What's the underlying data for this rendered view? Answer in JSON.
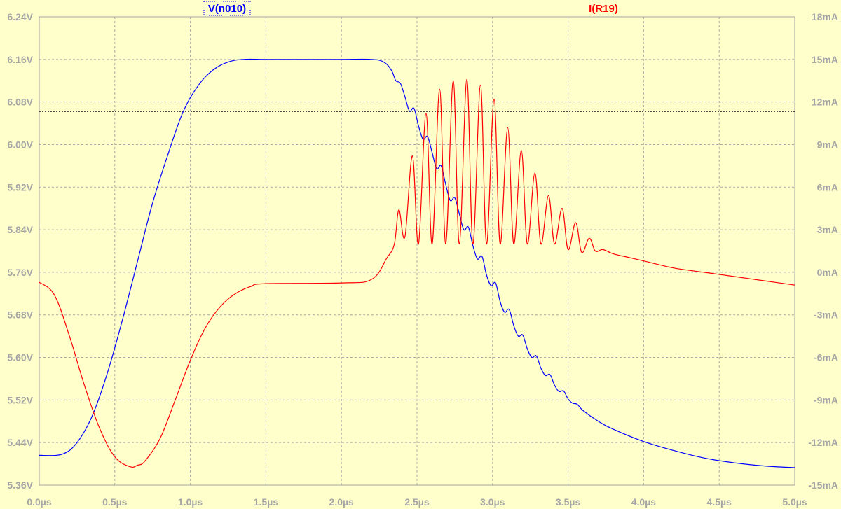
{
  "chart_data": {
    "type": "line",
    "background": "#ffffcc",
    "grid": true,
    "grid_color": "#a9a9a9",
    "axis_color": "#a5a5a5",
    "x_ticks": [
      "0.0µs",
      "0.5µs",
      "1.0µs",
      "1.5µs",
      "2.0µs",
      "2.5µs",
      "3.0µs",
      "3.5µs",
      "4.0µs",
      "4.5µs",
      "5.0µs"
    ],
    "xlim": [
      0,
      5
    ],
    "x_unit": "µs",
    "left_axis": {
      "ticks": [
        "6.24V",
        "6.16V",
        "6.08V",
        "6.00V",
        "5.92V",
        "5.84V",
        "5.76V",
        "5.68V",
        "5.60V",
        "5.52V",
        "5.44V",
        "5.36V"
      ],
      "ylim": [
        5.36,
        6.24
      ],
      "unit": "V"
    },
    "right_axis": {
      "ticks": [
        "18mA",
        "15mA",
        "12mA",
        "9mA",
        "6mA",
        "3mA",
        "0mA",
        "-3mA",
        "-6mA",
        "-9mA",
        "-12mA",
        "-15mA"
      ],
      "ylim": [
        -15,
        18
      ],
      "unit": "mA"
    },
    "cursor_level_v": 6.062,
    "series": [
      {
        "name": "V(n010)",
        "axis": "left",
        "color": "#0000ff",
        "x": [
          0,
          0.15,
          0.25,
          0.35,
          0.45,
          0.55,
          0.65,
          0.75,
          0.85,
          0.95,
          1.05,
          1.15,
          1.25,
          1.35,
          1.5,
          1.75,
          2.0,
          2.2,
          2.28,
          2.33,
          2.36,
          2.39,
          2.42,
          2.45,
          2.48,
          2.51,
          2.54,
          2.57,
          2.6,
          2.63,
          2.66,
          2.69,
          2.72,
          2.75,
          2.78,
          2.81,
          2.84,
          2.87,
          2.9,
          2.93,
          2.96,
          2.99,
          3.02,
          3.05,
          3.08,
          3.11,
          3.14,
          3.17,
          3.2,
          3.23,
          3.26,
          3.29,
          3.32,
          3.35,
          3.38,
          3.41,
          3.44,
          3.47,
          3.5,
          3.53,
          3.56,
          3.6,
          3.7,
          3.8,
          4.0,
          4.2,
          4.4,
          4.6,
          4.8,
          5.0
        ],
        "y": [
          5.416,
          5.418,
          5.44,
          5.49,
          5.57,
          5.67,
          5.78,
          5.89,
          5.98,
          6.06,
          6.11,
          6.14,
          6.155,
          6.16,
          6.16,
          6.16,
          6.16,
          6.16,
          6.155,
          6.14,
          6.12,
          6.115,
          6.09,
          6.063,
          6.068,
          6.035,
          6.01,
          6.015,
          5.985,
          5.955,
          5.96,
          5.925,
          5.895,
          5.9,
          5.87,
          5.84,
          5.845,
          5.81,
          5.785,
          5.79,
          5.755,
          5.735,
          5.74,
          5.705,
          5.685,
          5.69,
          5.66,
          5.64,
          5.642,
          5.616,
          5.6,
          5.603,
          5.58,
          5.566,
          5.568,
          5.548,
          5.536,
          5.537,
          5.522,
          5.514,
          5.512,
          5.5,
          5.48,
          5.465,
          5.442,
          5.425,
          5.411,
          5.402,
          5.396,
          5.393
        ]
      },
      {
        "name": "I(R19)",
        "axis": "right",
        "color": "#ff0000",
        "x": [
          0,
          0.1,
          0.2,
          0.3,
          0.4,
          0.5,
          0.6,
          0.65,
          0.7,
          0.8,
          0.9,
          1.0,
          1.1,
          1.2,
          1.3,
          1.4,
          1.5,
          2.0,
          2.2,
          2.3,
          2.35,
          2.38,
          2.42,
          2.47,
          2.51,
          2.56,
          2.6,
          2.65,
          2.69,
          2.74,
          2.78,
          2.83,
          2.87,
          2.92,
          2.96,
          3.01,
          3.05,
          3.1,
          3.14,
          3.19,
          3.23,
          3.28,
          3.32,
          3.37,
          3.41,
          3.46,
          3.5,
          3.55,
          3.59,
          3.64,
          3.68,
          3.73,
          3.8,
          3.9,
          4.0,
          4.2,
          4.4,
          4.6,
          4.8,
          5.0
        ],
        "y": [
          -0.7,
          -1.6,
          -4.5,
          -8.0,
          -11.0,
          -13.0,
          -13.7,
          -13.6,
          -13.3,
          -11.7,
          -9.0,
          -6.2,
          -3.9,
          -2.4,
          -1.5,
          -1.0,
          -0.8,
          -0.75,
          -0.5,
          1.0,
          2.0,
          4.4,
          2.5,
          8.2,
          2.0,
          11.2,
          2.0,
          12.9,
          2.0,
          13.5,
          2.0,
          13.6,
          2.0,
          13.2,
          2.0,
          12.2,
          2.0,
          10.2,
          2.0,
          8.6,
          2.0,
          7.0,
          2.0,
          5.4,
          2.0,
          4.5,
          1.6,
          3.5,
          1.4,
          2.4,
          1.5,
          1.6,
          1.3,
          1.05,
          0.8,
          0.3,
          0.0,
          -0.3,
          -0.6,
          -0.9
        ]
      }
    ]
  }
}
